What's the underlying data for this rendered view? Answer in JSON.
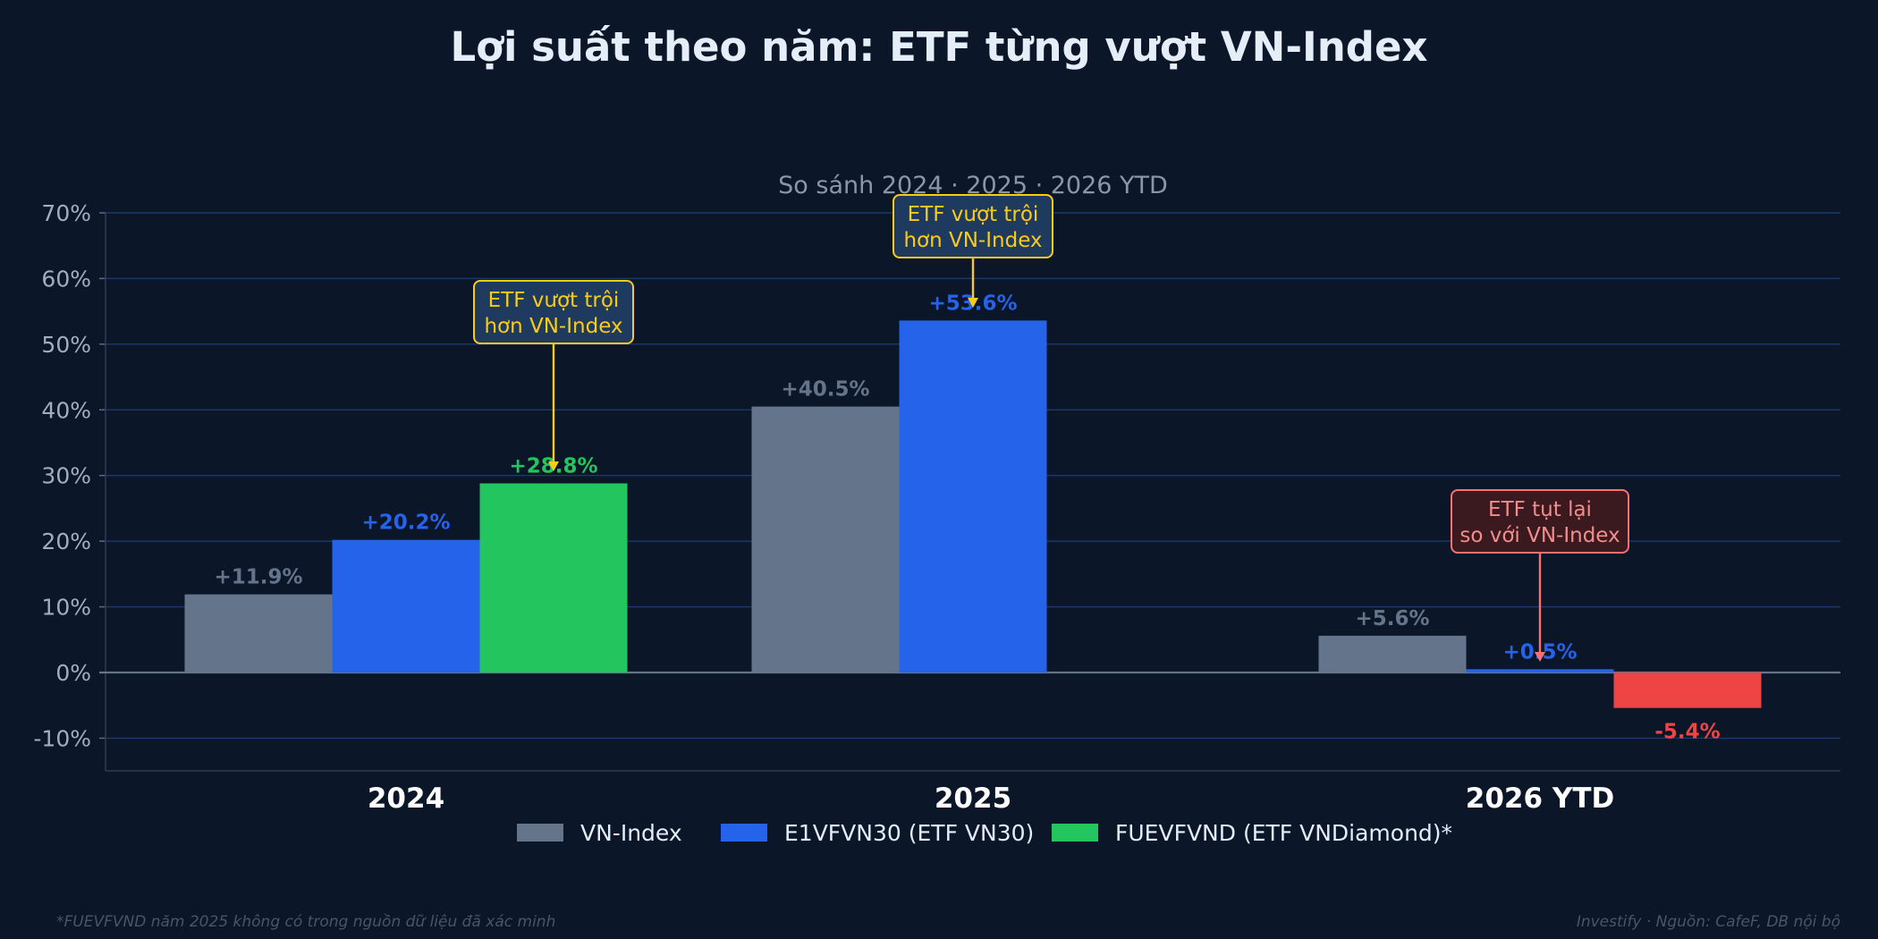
{
  "title": "Lợi suất theo năm: ETF từng vượt VN-Index",
  "subtitle": "So sánh 2024 · 2025 · 2026 YTD",
  "footnote": "*FUEVFVND năm 2025 không có trong nguồn dữ liệu đã xác minh",
  "credit": "Investify · Nguồn: CafeF, DB nội bộ",
  "colors": {
    "background": "#0b1628",
    "grid": "#1b3a6b",
    "vnindex": "#64748b",
    "e1vfvn30": "#2563eb",
    "fuevfvnd": "#22c55e",
    "negative": "#ef4444",
    "callout_positive": "#facc15",
    "callout_negative": "#f87171"
  },
  "chart_data": {
    "type": "bar",
    "categories": [
      "2024",
      "2025",
      "2026 YTD"
    ],
    "series": [
      {
        "name": "VN-Index",
        "values": [
          11.9,
          40.5,
          5.6
        ],
        "labels": [
          "+11.9%",
          "+40.5%",
          "+5.6%"
        ]
      },
      {
        "name": "E1VFVN30 (ETF VN30)",
        "values": [
          20.2,
          53.6,
          0.5
        ],
        "labels": [
          "+20.2%",
          "+53.6%",
          "+0.5%"
        ]
      },
      {
        "name": "FUEVFVND (ETF VNDiamond)*",
        "values": [
          28.8,
          null,
          -5.4
        ],
        "labels": [
          "+28.8%",
          "",
          "-5.4%"
        ]
      }
    ],
    "yticks": [
      "70%",
      "60%",
      "50%",
      "40%",
      "30%",
      "20%",
      "10%",
      "0%",
      "-10%"
    ],
    "ytick_values": [
      70,
      60,
      50,
      40,
      30,
      20,
      10,
      0,
      -10
    ],
    "ylim": [
      -15,
      70
    ],
    "grid": true,
    "legend_position": "bottom-center",
    "annotations": [
      {
        "line1": "ETF vượt trội",
        "line2": "hơn VN-Index",
        "category": 0,
        "series": 2,
        "tone": "positive"
      },
      {
        "line1": "ETF vượt trội",
        "line2": "hơn VN-Index",
        "category": 1,
        "series": 1,
        "tone": "positive"
      },
      {
        "line1": "ETF tụt lại",
        "line2": "so với VN-Index",
        "category": 2,
        "series": 1,
        "tone": "negative"
      }
    ]
  }
}
